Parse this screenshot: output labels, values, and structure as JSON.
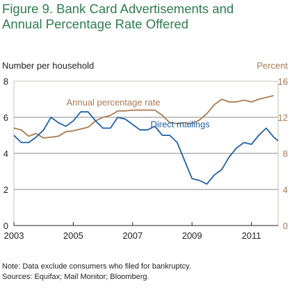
{
  "title_line1": "Figure 9. Bank Card Advertisements and",
  "title_line2": "Annual Percentage Rate Offered",
  "note": "Note: Data exclude consumers who filed for bankruptcy.",
  "sources": "Sources: Equifax; Mail Monitor; Bloomberg.",
  "colors": {
    "title": "#2e7d4f",
    "apr": "#a77a52",
    "mail": "#1f5fa6",
    "axis_left": "#222222",
    "axis_right": "#a77a52",
    "grid": "#888888",
    "frame": "#c9bfb3"
  },
  "chart_data": {
    "type": "line",
    "ylabel_left": "Number per household",
    "ylabel_right": "Percent",
    "xlim": [
      2003.0,
      2011.9
    ],
    "ylim_left": [
      0,
      8
    ],
    "ylim_right": [
      0,
      16
    ],
    "x_ticks": [
      2003,
      2005,
      2007,
      2009,
      2011
    ],
    "y_ticks_left": [
      0,
      2,
      4,
      6,
      8
    ],
    "y_ticks_right": [
      0,
      4,
      8,
      12,
      16
    ],
    "grid": true,
    "series": [
      {
        "name": "Annual percentage rate",
        "axis": "right",
        "x": [
          2003.0,
          2003.25,
          2003.5,
          2003.75,
          2004.0,
          2004.25,
          2004.5,
          2004.75,
          2005.0,
          2005.25,
          2005.5,
          2005.75,
          2006.0,
          2006.25,
          2006.5,
          2006.75,
          2007.0,
          2007.25,
          2007.5,
          2007.75,
          2008.0,
          2008.25,
          2008.5,
          2008.75,
          2009.0,
          2009.25,
          2009.5,
          2009.75,
          2010.0,
          2010.25,
          2010.5,
          2010.75,
          2011.0,
          2011.25,
          2011.5,
          2011.75
        ],
        "values": [
          10.8,
          10.6,
          9.9,
          10.2,
          9.7,
          9.8,
          9.9,
          10.4,
          10.5,
          10.7,
          10.9,
          11.6,
          12.0,
          12.2,
          12.7,
          12.7,
          12.8,
          12.8,
          12.8,
          12.8,
          12.2,
          11.4,
          11.3,
          11.4,
          11.3,
          11.7,
          12.4,
          13.4,
          14.0,
          13.7,
          13.7,
          13.9,
          13.7,
          14.0,
          14.2,
          14.4
        ]
      },
      {
        "name": "Direct mailings",
        "axis": "left",
        "x": [
          2003.0,
          2003.25,
          2003.5,
          2003.75,
          2004.0,
          2004.25,
          2004.5,
          2004.75,
          2005.0,
          2005.25,
          2005.5,
          2005.75,
          2006.0,
          2006.25,
          2006.5,
          2006.75,
          2007.0,
          2007.25,
          2007.5,
          2007.75,
          2008.0,
          2008.25,
          2008.5,
          2008.75,
          2009.0,
          2009.25,
          2009.5,
          2009.75,
          2010.0,
          2010.25,
          2010.5,
          2010.75,
          2011.0,
          2011.25,
          2011.5,
          2011.75,
          2011.9
        ],
        "values": [
          5.0,
          4.6,
          4.6,
          4.9,
          5.3,
          6.0,
          5.7,
          5.5,
          5.8,
          6.3,
          6.3,
          5.8,
          5.4,
          5.4,
          6.0,
          5.9,
          5.6,
          5.3,
          5.3,
          5.5,
          5.0,
          5.0,
          4.6,
          3.6,
          2.6,
          2.5,
          2.3,
          2.8,
          3.1,
          3.8,
          4.3,
          4.6,
          4.5,
          5.0,
          5.4,
          4.9,
          4.7
        ]
      }
    ]
  }
}
